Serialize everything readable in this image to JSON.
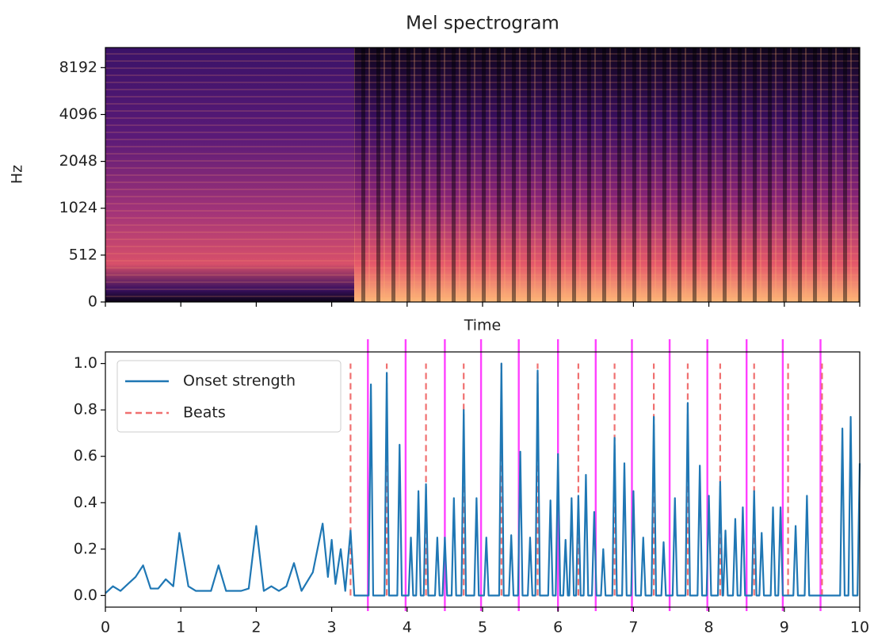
{
  "chart_data": [
    {
      "type": "spectrogram",
      "title": "Mel spectrogram",
      "ylabel": "Hz",
      "xlabel": "Time",
      "xlim": [
        0,
        10
      ],
      "xticks": [
        0,
        1,
        2,
        3,
        4,
        5,
        6,
        7,
        8,
        9,
        10
      ],
      "ylim": [
        0,
        11025
      ],
      "yticks": [
        0,
        512,
        1024,
        2048,
        4096,
        8192
      ],
      "yscale": "symlog",
      "linthresh": 512,
      "base": 2,
      "colormap": "magma"
    },
    {
      "type": "line",
      "xlim": [
        0,
        10
      ],
      "xticks": [
        0,
        1,
        2,
        3,
        4,
        5,
        6,
        7,
        8,
        9,
        10
      ],
      "ylim": [
        -0.05,
        1.05
      ],
      "yticks": [
        {
          "value": 0,
          "label": "0.0"
        },
        {
          "value": 0.2,
          "label": "0.2"
        },
        {
          "value": 0.4,
          "label": "0.4"
        },
        {
          "value": 0.6,
          "label": "0.6"
        },
        {
          "value": 0.8,
          "label": "0.8"
        },
        {
          "value": 1,
          "label": "1.0"
        }
      ],
      "legend": "upper left",
      "x": [
        0,
        0.1,
        0.2,
        0.3,
        0.4,
        0.5,
        0.6,
        0.7,
        0.8,
        0.9,
        0.98,
        1.1,
        1.2,
        1.4,
        1.5,
        1.6,
        1.8,
        1.9,
        2.0,
        2.1,
        2.2,
        2.3,
        2.4,
        2.5,
        2.6,
        2.75,
        2.88,
        2.95,
        3.0,
        3.05,
        3.12,
        3.18,
        3.25,
        3.3,
        3.49,
        3.52,
        3.55,
        3.7,
        3.73,
        3.76,
        3.87,
        3.9,
        3.93,
        4.02,
        4.05,
        4.08,
        4.12,
        4.15,
        4.18,
        4.22,
        4.25,
        4.28,
        4.37,
        4.4,
        4.43,
        4.47,
        4.5,
        4.53,
        4.59,
        4.62,
        4.65,
        4.72,
        4.75,
        4.78,
        4.89,
        4.92,
        4.95,
        5.02,
        5.05,
        5.08,
        5.22,
        5.25,
        5.28,
        5.35,
        5.38,
        5.41,
        5.47,
        5.5,
        5.53,
        5.6,
        5.63,
        5.66,
        5.7,
        5.73,
        5.76,
        5.87,
        5.9,
        5.93,
        5.97,
        6.0,
        6.03,
        6.07,
        6.1,
        6.13,
        6.15,
        6.18,
        6.21,
        6.24,
        6.27,
        6.3,
        6.34,
        6.37,
        6.4,
        6.45,
        6.48,
        6.51,
        6.57,
        6.6,
        6.63,
        6.72,
        6.75,
        6.78,
        6.85,
        6.88,
        6.91,
        6.97,
        7.0,
        7.03,
        7.1,
        7.13,
        7.16,
        7.24,
        7.27,
        7.3,
        7.37,
        7.4,
        7.43,
        7.52,
        7.55,
        7.58,
        7.69,
        7.72,
        7.75,
        7.85,
        7.88,
        7.91,
        7.97,
        8.0,
        8.03,
        8.12,
        8.15,
        8.18,
        8.19,
        8.22,
        8.25,
        8.32,
        8.35,
        8.38,
        8.42,
        8.45,
        8.48,
        8.57,
        8.6,
        8.63,
        8.67,
        8.7,
        8.73,
        8.82,
        8.85,
        8.88,
        8.92,
        8.95,
        8.98,
        9.12,
        9.15,
        9.18,
        9.27,
        9.3,
        9.33,
        9.74,
        9.77,
        9.8,
        9.85,
        9.88,
        9.91,
        9.97,
        10
      ],
      "series": [
        {
          "name": "Onset strength",
          "color": "#1f77b4",
          "values": [
            0.01,
            0.04,
            0.02,
            0.05,
            0.08,
            0.13,
            0.03,
            0.03,
            0.07,
            0.04,
            0.27,
            0.04,
            0.02,
            0.02,
            0.13,
            0.02,
            0.02,
            0.03,
            0.3,
            0.02,
            0.04,
            0.02,
            0.04,
            0.14,
            0.02,
            0.1,
            0.31,
            0.08,
            0.24,
            0.05,
            0.2,
            0.02,
            0.28,
            0,
            0,
            0.91,
            0,
            0,
            0.96,
            0,
            0,
            0.65,
            0,
            0,
            0.25,
            0,
            0,
            0.45,
            0,
            0,
            0.48,
            0,
            0,
            0.25,
            0,
            0,
            0.25,
            0,
            0,
            0.42,
            0,
            0,
            0.8,
            0,
            0,
            0.42,
            0,
            0,
            0.25,
            0,
            0,
            1.0,
            0,
            0,
            0.26,
            0,
            0,
            0.62,
            0,
            0,
            0.25,
            0,
            0,
            0.97,
            0,
            0,
            0.41,
            0,
            0,
            0.61,
            0,
            0,
            0.24,
            0,
            0,
            0.42,
            0,
            0,
            0.43,
            0,
            0,
            0.52,
            0,
            0,
            0.36,
            0,
            0,
            0.2,
            0,
            0,
            0.68,
            0,
            0,
            0.57,
            0,
            0,
            0.45,
            0,
            0,
            0.25,
            0,
            0,
            0.77,
            0,
            0,
            0.23,
            0,
            0,
            0.42,
            0,
            0,
            0.83,
            0,
            0,
            0.56,
            0,
            0,
            0.43,
            0,
            0,
            0.49,
            0,
            0,
            0.28,
            0,
            0,
            0.33,
            0,
            0,
            0.38,
            0,
            0,
            0.45,
            0,
            0,
            0.27,
            0,
            0,
            0.38,
            0,
            0,
            0.38,
            0,
            0,
            0.3,
            0,
            0,
            0.43,
            0,
            0,
            0.72,
            0,
            0,
            0.77,
            0,
            0,
            0.57
          ]
        }
      ],
      "beats": {
        "name": "Beats",
        "color": "#f07070",
        "ymin": 0,
        "ymax": 1,
        "x": [
          3.25,
          3.73,
          4.25,
          4.75,
          5.25,
          5.73,
          6.27,
          6.75,
          7.27,
          7.72,
          8.15,
          8.6,
          9.05,
          9.5
        ]
      },
      "vlines": {
        "color": "#ff40ff",
        "x": [
          3.48,
          3.98,
          4.5,
          4.98,
          5.48,
          6.0,
          6.5,
          6.98,
          7.48,
          7.98,
          8.5,
          8.98,
          9.48
        ]
      }
    }
  ]
}
